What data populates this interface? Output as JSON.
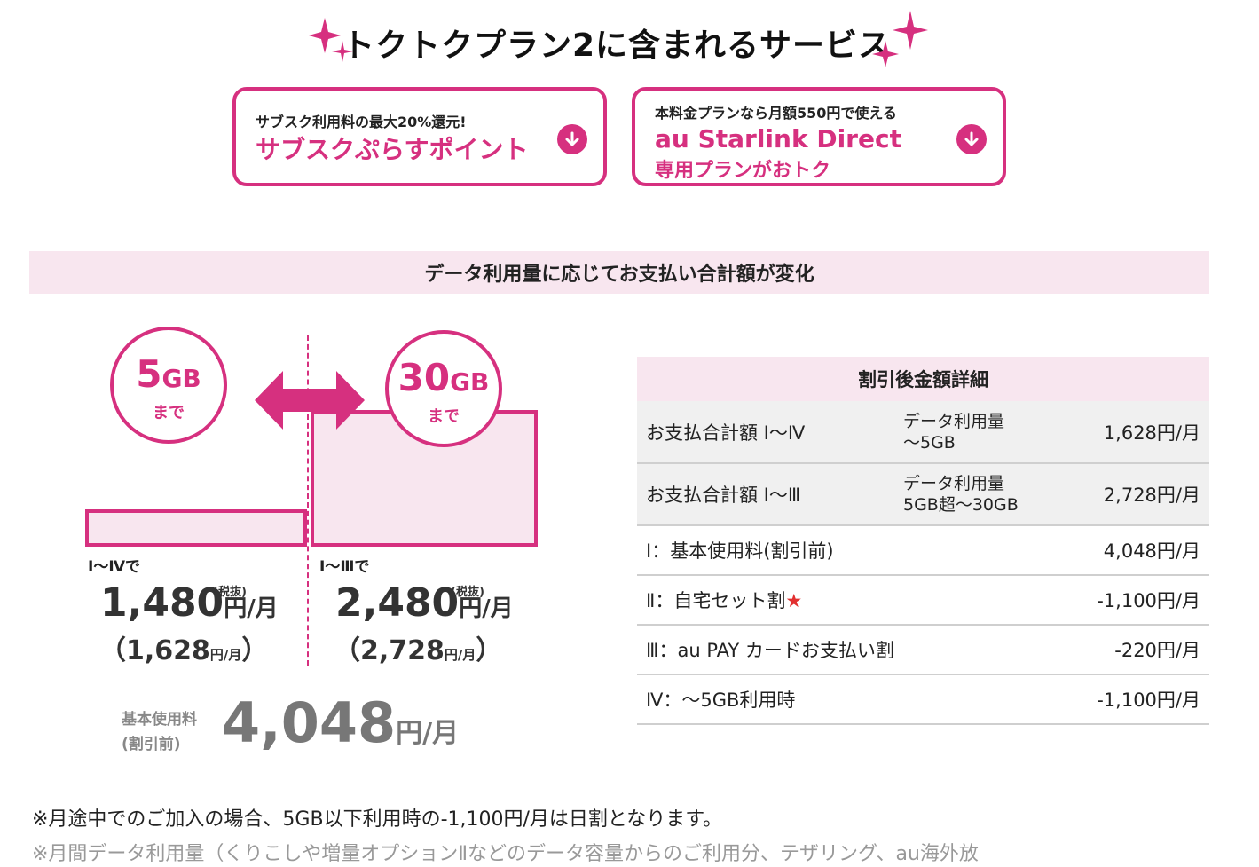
{
  "header": {
    "title": "トクトクプラン2に含まれるサービス"
  },
  "cards": [
    {
      "sub": "サブスク利用料の最大20%還元!",
      "main": "サブスクぷらすポイント"
    },
    {
      "sub": "本料金プランなら月額550円で使える",
      "main": "au Starlink Direct",
      "main2": "専用プランがおトク"
    }
  ],
  "band": {
    "title": "データ利用量に応じてお支払い合計額が変化"
  },
  "diagram": {
    "left": {
      "circle_value": "5",
      "circle_unit": "GB",
      "circle_sub": "まで",
      "range": "Ⅰ～Ⅳで",
      "price": "1,480",
      "price_unit": "円/月",
      "tax_note": "(税抜)",
      "price_incl": "（1,628",
      "price_incl_unit": "円/月",
      "price_incl_close": "）"
    },
    "right": {
      "circle_value": "30",
      "circle_unit": "GB",
      "circle_sub": "まで",
      "range": "Ⅰ～Ⅲで",
      "price": "2,480",
      "price_unit": "円/月",
      "tax_note": "(税抜)",
      "price_incl": "（2,728",
      "price_incl_unit": "円/月",
      "price_incl_close": "）"
    },
    "base": {
      "label_line1": "基本使用料",
      "label_line2": "(割引前)",
      "price": "4,048",
      "unit": "円/月"
    }
  },
  "table": {
    "header": "割引後金額詳細",
    "rows": [
      {
        "label": "お支払合計額 Ⅰ～Ⅳ",
        "cond1": "データ利用量",
        "cond2": "～5GB",
        "amount": "1,628円/月"
      },
      {
        "label": "お支払合計額 Ⅰ～Ⅲ",
        "cond1": "データ利用量",
        "cond2": "5GB超～30GB",
        "amount": "2,728円/月"
      },
      {
        "label": "Ⅰ：基本使用料(割引前)",
        "amount": "4,048円/月"
      },
      {
        "label": "Ⅱ：自宅セット割",
        "star": "★",
        "amount": "-1,100円/月"
      },
      {
        "label": "Ⅲ：au PAY カードお支払い割",
        "amount": "-220円/月"
      },
      {
        "label": "Ⅳ：～5GB利用時",
        "amount": "-1,100円/月"
      }
    ]
  },
  "notes": {
    "note1": "※月途中でのご加入の場合、5GB以下利用時の-1,100円/月は日割となります。",
    "note2": "※月間データ利用量（くりこしや増量オプションⅡなどのデータ容量からのご利用分、テザリング、au海外放"
  },
  "colors": {
    "accent": "#d6307f",
    "band_bg": "#f8e6ef",
    "star": "#e23030"
  }
}
